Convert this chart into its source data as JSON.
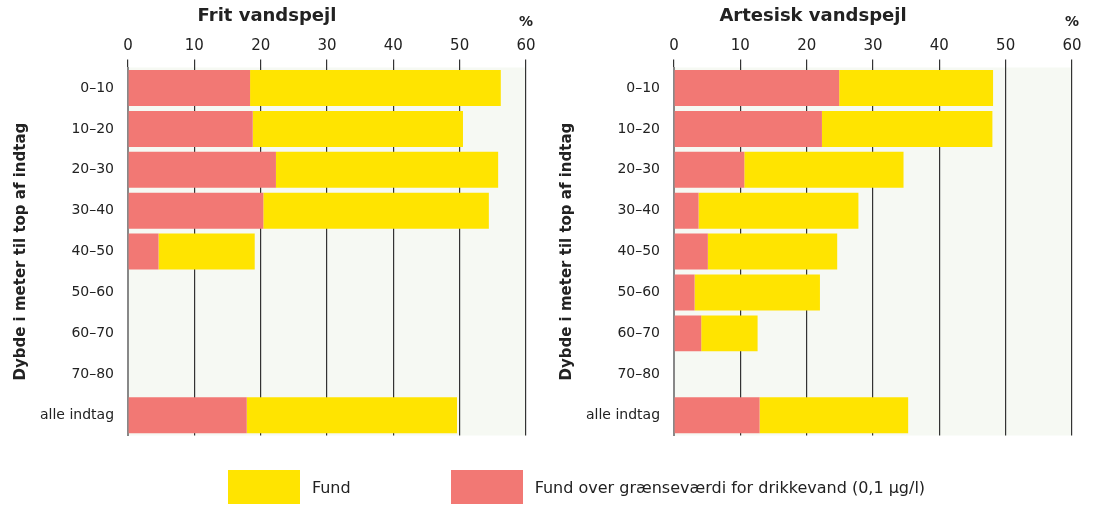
{
  "chart_data": [
    {
      "type": "bar",
      "orientation": "horizontal",
      "stacked": true,
      "title": "Frit vandspejl",
      "xlabel": "%",
      "ylabel": "Dybde i meter til top af indtag",
      "categories": [
        "0–10",
        "10–20",
        "20–30",
        "30–40",
        "40–50",
        "50–60",
        "60–70",
        "70–80",
        "alle indtag"
      ],
      "series": [
        {
          "name": "Fund over grænseværdi for drikkevand (0,1 µg/l)",
          "color": "#f27874",
          "values": [
            18.4,
            18.8,
            22.3,
            20.4,
            4.6,
            null,
            null,
            null,
            17.9
          ]
        },
        {
          "name": "Fund",
          "color": "#ffe400",
          "values": [
            37.8,
            31.7,
            33.5,
            34.0,
            14.5,
            null,
            null,
            null,
            31.7
          ]
        }
      ],
      "xlim": [
        0,
        60
      ],
      "xticks": [
        0,
        10,
        20,
        30,
        40,
        50,
        60
      ],
      "grid": "x",
      "legend": "bottom"
    },
    {
      "type": "bar",
      "orientation": "horizontal",
      "stacked": true,
      "title": "Artesisk vandspejl",
      "xlabel": "%",
      "ylabel": "Dybde i meter til top af indtag",
      "categories": [
        "0–10",
        "10–20",
        "20–30",
        "30–40",
        "40–50",
        "50–60",
        "60–70",
        "70–80",
        "alle indtag"
      ],
      "series": [
        {
          "color": "#f27874",
          "values": [
            24.9,
            22.3,
            10.6,
            3.7,
            5.1,
            3.1,
            4.1,
            null,
            12.9
          ]
        },
        {
          "color": "#ffe400",
          "values": [
            23.2,
            25.7,
            24.0,
            24.1,
            19.5,
            18.9,
            8.5,
            null,
            22.4
          ]
        }
      ],
      "xlim": [
        0,
        60
      ],
      "xticks": [
        0,
        10,
        20,
        30,
        40,
        50,
        60
      ],
      "grid": "x"
    }
  ]
}
